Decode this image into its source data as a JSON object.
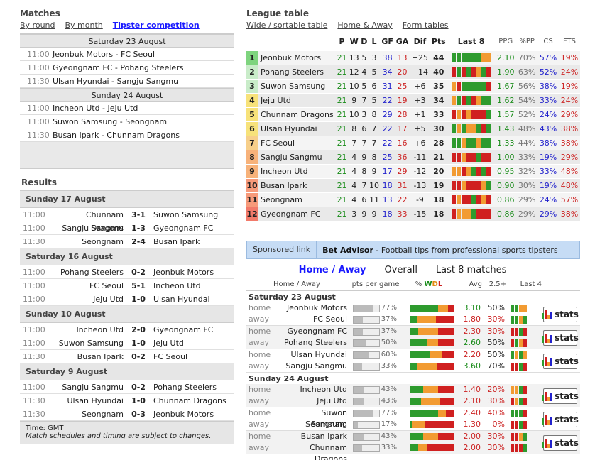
{
  "matches": {
    "title": "Matches",
    "tabs": [
      "By round",
      "By month",
      "Tipster competition"
    ],
    "days": [
      {
        "date": "Saturday 23 August",
        "games": [
          {
            "time": "11:00",
            "teams": "Jeonbuk Motors - FC Seoul"
          },
          {
            "time": "11:00",
            "teams": "Gyeongnam FC - Pohang Steelers"
          },
          {
            "time": "11:30",
            "teams": "Ulsan Hyundai - Sangju Sangmu"
          }
        ]
      },
      {
        "date": "Sunday 24 August",
        "games": [
          {
            "time": "11:00",
            "teams": "Incheon Utd - Jeju Utd"
          },
          {
            "time": "11:00",
            "teams": "Suwon Samsung - Seongnam"
          },
          {
            "time": "11:30",
            "teams": "Busan Ipark - Chunnam Dragons"
          }
        ]
      }
    ]
  },
  "results": {
    "title": "Results",
    "days": [
      {
        "date": "Sunday 17 August",
        "games": [
          {
            "time": "11:00",
            "home": "Chunnam Dragons",
            "score": "3-1",
            "away": "Suwon Samsung"
          },
          {
            "time": "11:00",
            "home": "Sangju Sangmu",
            "score": "1-3",
            "away": "Gyeongnam FC"
          },
          {
            "time": "11:30",
            "home": "Seongnam",
            "score": "2-4",
            "away": "Busan Ipark"
          }
        ]
      },
      {
        "date": "Saturday 16 August",
        "games": [
          {
            "time": "11:00",
            "home": "Pohang Steelers",
            "score": "0-2",
            "away": "Jeonbuk Motors"
          },
          {
            "time": "11:00",
            "home": "FC Seoul",
            "score": "5-1",
            "away": "Incheon Utd"
          },
          {
            "time": "11:00",
            "home": "Jeju Utd",
            "score": "1-0",
            "away": "Ulsan Hyundai"
          }
        ]
      },
      {
        "date": "Sunday 10 August",
        "games": [
          {
            "time": "11:00",
            "home": "Incheon Utd",
            "score": "2-0",
            "away": "Gyeongnam FC"
          },
          {
            "time": "11:00",
            "home": "Suwon Samsung",
            "score": "1-0",
            "away": "Jeju Utd"
          },
          {
            "time": "11:30",
            "home": "Busan Ipark",
            "score": "0-2",
            "away": "FC Seoul"
          }
        ]
      },
      {
        "date": "Saturday 9 August",
        "games": [
          {
            "time": "11:00",
            "home": "Sangju Sangmu",
            "score": "0-2",
            "away": "Pohang Steelers"
          },
          {
            "time": "11:30",
            "home": "Ulsan Hyundai",
            "score": "1-0",
            "away": "Chunnam Dragons"
          },
          {
            "time": "11:30",
            "home": "Seongnam",
            "score": "0-3",
            "away": "Jeonbuk Motors"
          }
        ]
      }
    ],
    "foot_time": "Time: GMT",
    "foot_note": "Match schedules and timing are subject to changes."
  },
  "league": {
    "title": "League table",
    "tabs": [
      "Wide / sortable table",
      "Home & Away",
      "Form tables"
    ],
    "headers": [
      "P",
      "W",
      "D",
      "L",
      "GF",
      "GA",
      "Dif",
      "Pts",
      "Last 8",
      "PPG",
      "%PP",
      "CS",
      "FTS"
    ],
    "rows": [
      {
        "pos": "1",
        "team": "Jeonbuk Motors",
        "p": "21",
        "w": "13",
        "d": "5",
        "l": "3",
        "gf": "38",
        "ga": "13",
        "dif": "+25",
        "pts": "44",
        "last8": "WWWWWWDD",
        "ppg": "2.10",
        "pp": "70%",
        "cs": "57%",
        "fts": "19%"
      },
      {
        "pos": "2",
        "team": "Pohang Steelers",
        "p": "21",
        "w": "12",
        "d": "4",
        "l": "5",
        "gf": "34",
        "ga": "20",
        "dif": "+14",
        "pts": "40",
        "last8": "LWLWLDWL",
        "ppg": "1.90",
        "pp": "63%",
        "cs": "52%",
        "fts": "24%"
      },
      {
        "pos": "3",
        "team": "Suwon Samsung",
        "p": "21",
        "w": "10",
        "d": "5",
        "l": "6",
        "gf": "31",
        "ga": "25",
        "dif": "+6",
        "pts": "35",
        "last8": "DLWWWWWL",
        "ppg": "1.67",
        "pp": "56%",
        "cs": "38%",
        "fts": "19%"
      },
      {
        "pos": "4",
        "team": "Jeju Utd",
        "p": "21",
        "w": "9",
        "d": "7",
        "l": "5",
        "gf": "22",
        "ga": "19",
        "dif": "+3",
        "pts": "34",
        "last8": "DWLWLDWW",
        "ppg": "1.62",
        "pp": "54%",
        "cs": "33%",
        "fts": "24%"
      },
      {
        "pos": "5",
        "team": "Chunnam Dragons",
        "p": "21",
        "w": "10",
        "d": "3",
        "l": "8",
        "gf": "29",
        "ga": "28",
        "dif": "+1",
        "pts": "33",
        "last8": "LDLDLLLW",
        "ppg": "1.57",
        "pp": "52%",
        "cs": "24%",
        "fts": "29%"
      },
      {
        "pos": "6",
        "team": "Ulsan Hyundai",
        "p": "21",
        "w": "8",
        "d": "6",
        "l": "7",
        "gf": "22",
        "ga": "17",
        "dif": "+5",
        "pts": "30",
        "last8": "WDWDDWLW",
        "ppg": "1.43",
        "pp": "48%",
        "cs": "43%",
        "fts": "38%"
      },
      {
        "pos": "7",
        "team": "FC Seoul",
        "p": "21",
        "w": "7",
        "d": "7",
        "l": "7",
        "gf": "22",
        "ga": "16",
        "dif": "+6",
        "pts": "28",
        "last8": "WWDWWDWW",
        "ppg": "1.33",
        "pp": "44%",
        "cs": "38%",
        "fts": "38%"
      },
      {
        "pos": "8",
        "team": "Sangju Sangmu",
        "p": "21",
        "w": "4",
        "d": "9",
        "l": "8",
        "gf": "25",
        "ga": "36",
        "dif": "-11",
        "pts": "21",
        "last8": "LLDLLWLL",
        "ppg": "1.00",
        "pp": "33%",
        "cs": "19%",
        "fts": "29%"
      },
      {
        "pos": "9",
        "team": "Incheon Utd",
        "p": "21",
        "w": "4",
        "d": "8",
        "l": "9",
        "gf": "17",
        "ga": "29",
        "dif": "-12",
        "pts": "20",
        "last8": "DDLDWLWL",
        "ppg": "0.95",
        "pp": "32%",
        "cs": "33%",
        "fts": "48%"
      },
      {
        "pos": "10",
        "team": "Busan Ipark",
        "p": "21",
        "w": "4",
        "d": "7",
        "l": "10",
        "gf": "18",
        "ga": "31",
        "dif": "-13",
        "pts": "19",
        "last8": "LLDLLLDW",
        "ppg": "0.90",
        "pp": "30%",
        "cs": "19%",
        "fts": "48%"
      },
      {
        "pos": "11",
        "team": "Seongnam",
        "p": "21",
        "w": "4",
        "d": "6",
        "l": "11",
        "gf": "13",
        "ga": "22",
        "dif": "-9",
        "pts": "18",
        "last8": "LDLLWLDL",
        "ppg": "0.86",
        "pp": "29%",
        "cs": "24%",
        "fts": "57%"
      },
      {
        "pos": "12",
        "team": "Gyeongnam FC",
        "p": "21",
        "w": "3",
        "d": "9",
        "l": "9",
        "gf": "18",
        "ga": "33",
        "dif": "-15",
        "pts": "18",
        "last8": "LDDDWLLL",
        "ppg": "0.86",
        "pp": "29%",
        "cs": "29%",
        "fts": "38%"
      }
    ]
  },
  "sponsor": {
    "label": "Sponsored link",
    "link": "Bet Advisor",
    "text": " - Football tips from professional sports tipsters"
  },
  "homeaway": {
    "tabs": [
      "Home / Away",
      "Overall",
      "Last 8 matches"
    ],
    "headers": {
      "ha": "Home / Away",
      "ppg": "pts per game",
      "pct": "% ",
      "w": "W",
      "d": "D",
      "l": "L",
      "avg": "Avg",
      "p25": "2.5+",
      "last4": "Last 4"
    },
    "stats_label": "stats",
    "days": [
      {
        "date": "Saturday 23 August",
        "pairs": [
          {
            "home": {
              "type": "home",
              "team": "Jeonbuk Motors",
              "pct": "77%",
              "w": 0.65,
              "d": 0.22,
              "l": 0.13,
              "avg": "3.10",
              "p25": "50%",
              "last4": "WWDD"
            },
            "away": {
              "type": "away",
              "team": "FC Seoul",
              "pct": "37%",
              "w": 0.18,
              "d": 0.42,
              "l": 0.4,
              "avg": "1.80",
              "p25": "30%",
              "last4": "WWDW"
            }
          },
          {
            "home": {
              "type": "home",
              "team": "Gyeongnam FC",
              "pct": "37%",
              "w": 0.2,
              "d": 0.45,
              "l": 0.35,
              "avg": "2.30",
              "p25": "30%",
              "last4": "LLWL"
            },
            "away": {
              "type": "away",
              "team": "Pohang Steelers",
              "pct": "50%",
              "w": 0.4,
              "d": 0.25,
              "l": 0.35,
              "avg": "2.60",
              "p25": "50%",
              "last4": "LWDL"
            }
          },
          {
            "home": {
              "type": "home",
              "team": "Ulsan Hyundai",
              "pct": "60%",
              "w": 0.45,
              "d": 0.3,
              "l": 0.25,
              "avg": "2.20",
              "p25": "50%",
              "last4": "WDWD"
            },
            "away": {
              "type": "away",
              "team": "Sangju Sangmu",
              "pct": "33%",
              "w": 0.18,
              "d": 0.45,
              "l": 0.37,
              "avg": "3.60",
              "p25": "70%",
              "last4": "LLWL"
            }
          }
        ]
      },
      {
        "date": "Sunday 24 August",
        "pairs": [
          {
            "home": {
              "type": "home",
              "team": "Incheon Utd",
              "pct": "43%",
              "w": 0.3,
              "d": 0.35,
              "l": 0.35,
              "avg": "1.40",
              "p25": "20%",
              "last4": "DDWL"
            },
            "away": {
              "type": "away",
              "team": "Jeju Utd",
              "pct": "43%",
              "w": 0.25,
              "d": 0.45,
              "l": 0.3,
              "avg": "2.10",
              "p25": "30%",
              "last4": "LDWL"
            }
          },
          {
            "home": {
              "type": "home",
              "team": "Suwon Samsung",
              "pct": "77%",
              "w": 0.65,
              "d": 0.18,
              "l": 0.17,
              "avg": "2.40",
              "p25": "40%",
              "last4": "WWWL"
            },
            "away": {
              "type": "away",
              "team": "Seongnam",
              "pct": "17%",
              "w": 0.05,
              "d": 0.3,
              "l": 0.65,
              "avg": "1.30",
              "p25": "0%",
              "last4": "LLWL"
            }
          },
          {
            "home": {
              "type": "home",
              "team": "Busan Ipark",
              "pct": "43%",
              "w": 0.3,
              "d": 0.35,
              "l": 0.35,
              "avg": "2.00",
              "p25": "30%",
              "last4": "LLDW"
            },
            "away": {
              "type": "away",
              "team": "Chunnam Dragons",
              "pct": "33%",
              "w": 0.2,
              "d": 0.2,
              "l": 0.6,
              "avg": "2.00",
              "p25": "30%",
              "last4": "LLLW"
            }
          }
        ]
      }
    ]
  }
}
